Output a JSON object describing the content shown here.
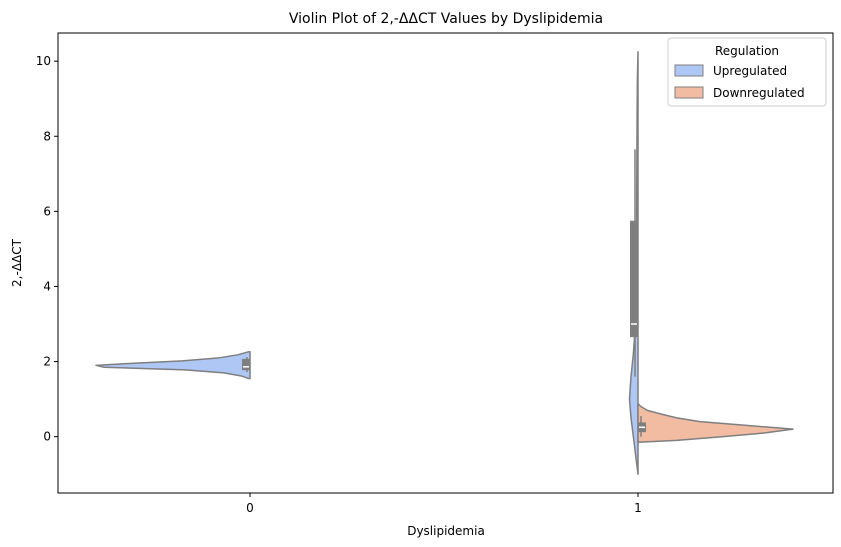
{
  "chart_data": {
    "type": "violin",
    "title": "Violin Plot of 2,-ΔΔCT Values by Dyslipidemia",
    "xlabel": "Dyslipidemia",
    "ylabel": "2,-ΔΔCT",
    "categories": [
      "0",
      "1"
    ],
    "ylim": [
      -1.5,
      10.75
    ],
    "yticks": [
      0,
      2,
      4,
      6,
      8,
      10
    ],
    "split": true,
    "legend": {
      "title": "Regulation",
      "position": "top-right",
      "entries": [
        "Upregulated",
        "Downregulated"
      ]
    },
    "series": [
      {
        "name": "Upregulated",
        "color": "#aec7f4",
        "side": "left",
        "violins": [
          {
            "category": "0",
            "profile": [
              [
                1.55,
                0.01
              ],
              [
                1.62,
                0.06
              ],
              [
                1.7,
                0.17
              ],
              [
                1.78,
                0.42
              ],
              [
                1.85,
                0.95
              ],
              [
                1.9,
                1.0
              ],
              [
                1.96,
                0.74
              ],
              [
                2.02,
                0.44
              ],
              [
                2.1,
                0.2
              ],
              [
                2.18,
                0.08
              ],
              [
                2.26,
                0.01
              ]
            ],
            "box": {
              "q1": 1.77,
              "median": 1.86,
              "q3": 2.07,
              "whisker_low": 1.72,
              "whisker_high": 2.12
            }
          },
          {
            "category": "1",
            "profile": [
              [
                -1.0,
                0.0
              ],
              [
                -0.5,
                0.015
              ],
              [
                0.0,
                0.03
              ],
              [
                0.5,
                0.045
              ],
              [
                1.0,
                0.055
              ],
              [
                1.6,
                0.045
              ],
              [
                2.2,
                0.03
              ],
              [
                2.8,
                0.02
              ],
              [
                3.4,
                0.015
              ],
              [
                4.0,
                0.012
              ],
              [
                5.0,
                0.01
              ],
              [
                6.5,
                0.008
              ],
              [
                8.5,
                0.006
              ],
              [
                9.5,
                0.004
              ],
              [
                10.25,
                0.0
              ]
            ],
            "box": {
              "q1": 2.65,
              "median": 3.0,
              "q3": 5.75,
              "whisker_low": 1.6,
              "whisker_high": 7.65
            }
          }
        ]
      },
      {
        "name": "Downregulated",
        "color": "#f2bca3",
        "side": "right",
        "violins": [
          {
            "category": "1",
            "profile": [
              [
                -0.15,
                0.0
              ],
              [
                -0.1,
                0.25
              ],
              [
                0.0,
                0.55
              ],
              [
                0.1,
                0.82
              ],
              [
                0.2,
                1.0
              ],
              [
                0.3,
                0.7
              ],
              [
                0.4,
                0.4
              ],
              [
                0.5,
                0.25
              ],
              [
                0.6,
                0.15
              ],
              [
                0.7,
                0.06
              ],
              [
                0.8,
                0.02
              ],
              [
                0.88,
                0.0
              ]
            ],
            "box": {
              "q1": 0.12,
              "median": 0.25,
              "q3": 0.38,
              "whisker_low": 0.0,
              "whisker_high": 0.55
            }
          }
        ]
      }
    ]
  }
}
